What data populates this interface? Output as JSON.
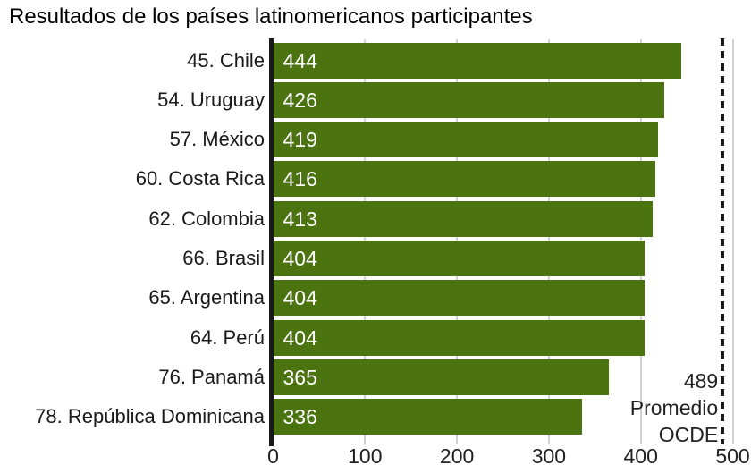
{
  "title": "Resultados de los países latinomericanos participantes",
  "chart_data": {
    "type": "bar",
    "orientation": "horizontal",
    "title": "Resultados de los países latinomericanos participantes",
    "categories": [
      "45. Chile",
      "54. Uruguay",
      "57. México",
      "60. Costa Rica",
      "62. Colombia",
      "66. Brasil",
      "65. Argentina",
      "64. Perú",
      "76. Panamá",
      "78. República Dominicana"
    ],
    "values": [
      444,
      426,
      419,
      416,
      413,
      404,
      404,
      404,
      365,
      336
    ],
    "value_labels_position": "inside-left",
    "xlabel": "",
    "ylabel": "",
    "xlim": [
      0,
      500
    ],
    "xticks": [
      0,
      100,
      200,
      300,
      400,
      500
    ],
    "grid": true,
    "legend": false,
    "reference_line": {
      "value": 489,
      "label_lines": [
        "489",
        "Promedio",
        "OCDE"
      ]
    }
  },
  "colors": {
    "background": "#ffffff",
    "bar": "#4b7410",
    "grid": "#d2d2d2",
    "axis": "#1a1a1a",
    "reference": "#1a1a1a",
    "text": "#1a1a1a",
    "value_text": "#ffffff"
  }
}
